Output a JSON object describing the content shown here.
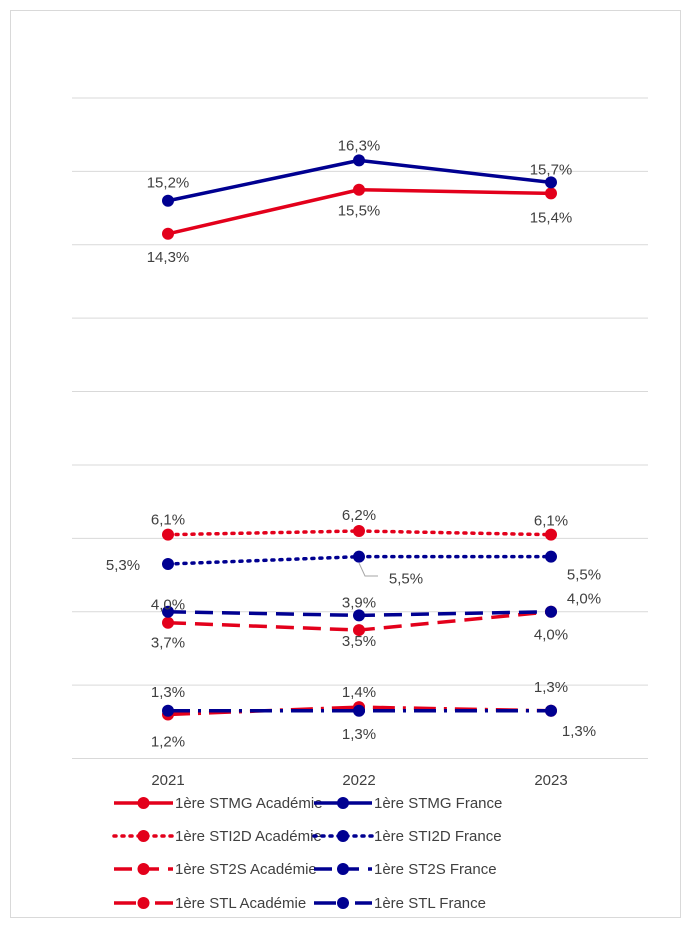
{
  "chart_data": {
    "type": "line",
    "title": "",
    "xlabel": "",
    "ylabel": "",
    "ylim": [
      0,
      18
    ],
    "grid": true,
    "legend_position": "bottom",
    "categories": [
      "2021",
      "2022",
      "2023"
    ],
    "series": [
      {
        "name": "1ère STMG Académie",
        "color": "#e3001b",
        "style": "solid",
        "values": [
          14.3,
          15.5,
          15.4
        ],
        "labels": [
          "14,3%",
          "15,5%",
          "15,4%"
        ]
      },
      {
        "name": "1ère STMG France",
        "color": "#000091",
        "style": "solid",
        "values": [
          15.2,
          16.3,
          15.7
        ],
        "labels": [
          "15,2%",
          "16,3%",
          "15,7%"
        ]
      },
      {
        "name": "1ère STI2D Académie",
        "color": "#e3001b",
        "style": "dotted",
        "values": [
          6.1,
          6.2,
          6.1
        ],
        "labels": [
          "6,1%",
          "6,2%",
          "6,1%"
        ]
      },
      {
        "name": "1ère STI2D France",
        "color": "#000091",
        "style": "dotted",
        "values": [
          5.3,
          5.5,
          5.5
        ],
        "labels": [
          "5,3%",
          "5,5%",
          "5,5%"
        ]
      },
      {
        "name": "1ère ST2S Académie",
        "color": "#e3001b",
        "style": "dashed",
        "values": [
          3.7,
          3.5,
          4.0
        ],
        "labels": [
          "3,7%",
          "3,5%",
          "4,0%"
        ]
      },
      {
        "name": "1ère ST2S France",
        "color": "#000091",
        "style": "dashed",
        "values": [
          4.0,
          3.9,
          4.0
        ],
        "labels": [
          "4,0%",
          "3,9%",
          "4,0%"
        ]
      },
      {
        "name": "1ère STL Académie",
        "color": "#e3001b",
        "style": "dashdot",
        "values": [
          1.2,
          1.4,
          1.3
        ],
        "labels": [
          "1,2%",
          "1,4%",
          "1,3%"
        ]
      },
      {
        "name": "1ère STL France",
        "color": "#000091",
        "style": "dashdot",
        "values": [
          1.3,
          1.3,
          1.3
        ],
        "labels": [
          "1,3%",
          "1,3%",
          "1,3%"
        ]
      }
    ]
  }
}
